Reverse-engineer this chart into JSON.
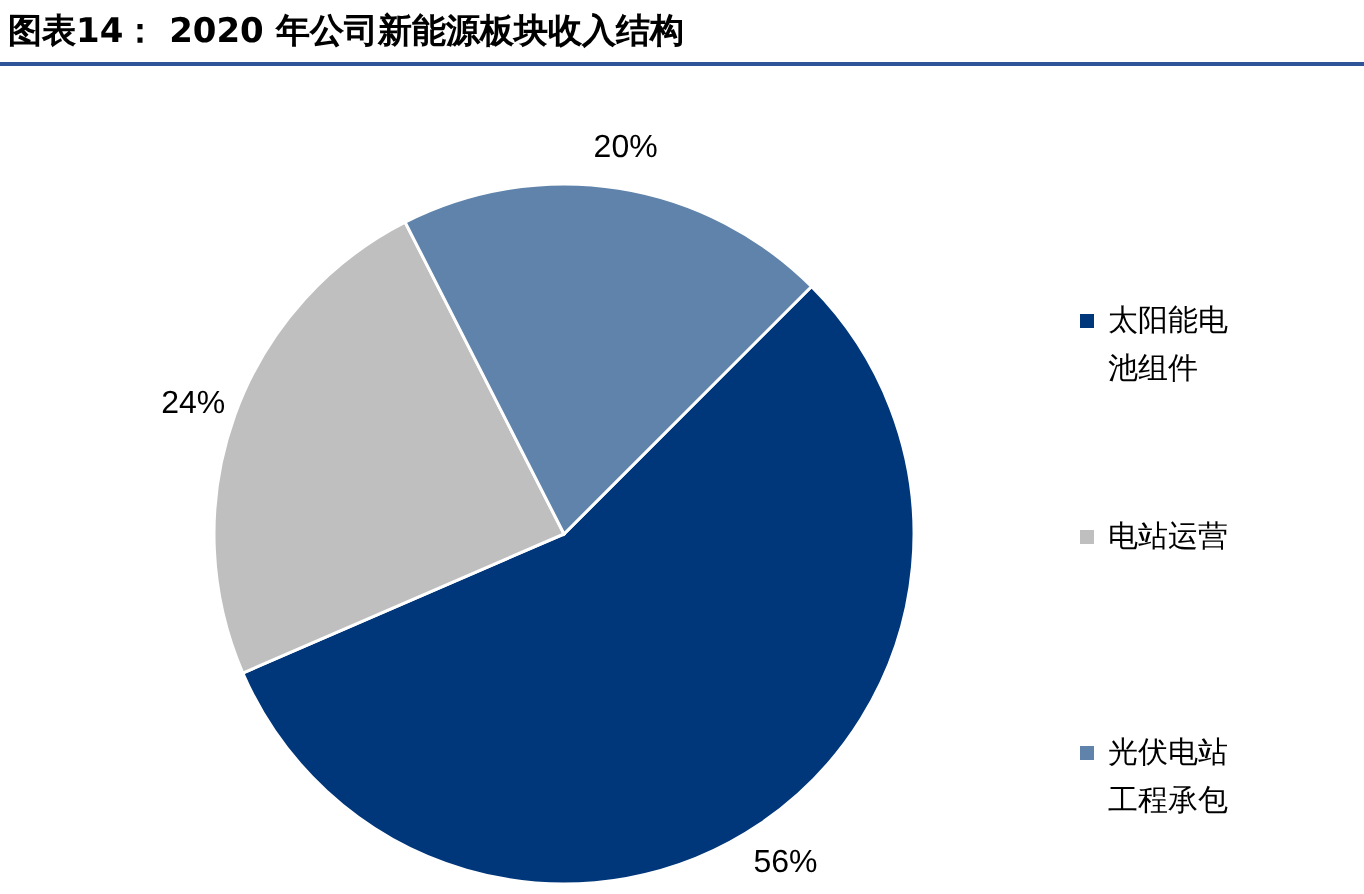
{
  "chart_data": {
    "type": "pie",
    "title": "图表14： 2020 年公司新能源板块收入结构",
    "categories": [
      "太阳能电池组件",
      "电站运营",
      "光伏电站工程承包"
    ],
    "values": [
      56,
      24,
      20
    ],
    "colors": [
      "#00367a",
      "#bfbfbf",
      "#5f83ab"
    ],
    "value_labels": [
      "56%",
      "24%",
      "20%"
    ],
    "legend": "right"
  }
}
